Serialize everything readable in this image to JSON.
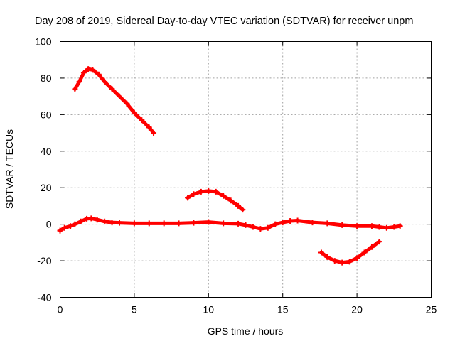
{
  "chart_data": {
    "type": "scatter",
    "title": "Day 208 of 2019, Sidereal Day-to-day VTEC variation (SDTVAR) for receiver unpm",
    "xlabel": "GPS time / hours",
    "ylabel": "SDTVAR / TECUs",
    "xlim": [
      0,
      25
    ],
    "ylim": [
      -40,
      100
    ],
    "xticks": [
      0,
      5,
      10,
      15,
      20,
      25
    ],
    "yticks": [
      -40,
      -20,
      0,
      20,
      40,
      60,
      80,
      100
    ],
    "xtick_labels": [
      "0",
      "5",
      "10",
      "15",
      "20",
      "25"
    ],
    "ytick_labels": [
      "-40",
      "-20",
      "0",
      "20",
      "40",
      "60",
      "80",
      "100"
    ],
    "grid": true,
    "series_color": "#ff0000",
    "series": [
      {
        "name": "arc-1",
        "points": [
          [
            1.0,
            74
          ],
          [
            1.3,
            78
          ],
          [
            1.6,
            83
          ],
          [
            1.9,
            85
          ],
          [
            2.2,
            84.5
          ],
          [
            2.6,
            82
          ],
          [
            3.0,
            78
          ],
          [
            3.5,
            74
          ],
          [
            4.0,
            70
          ],
          [
            4.5,
            66
          ],
          [
            5.0,
            61
          ],
          [
            5.5,
            57
          ],
          [
            6.0,
            53
          ],
          [
            6.3,
            50
          ]
        ]
      },
      {
        "name": "arc-2",
        "points": [
          [
            0.0,
            -3.5
          ],
          [
            0.3,
            -2
          ],
          [
            0.7,
            -1
          ],
          [
            1.0,
            0
          ],
          [
            1.4,
            1.5
          ],
          [
            1.8,
            3
          ],
          [
            2.1,
            3.2
          ],
          [
            2.5,
            2.5
          ],
          [
            3.0,
            1.5
          ],
          [
            3.5,
            1
          ],
          [
            4.0,
            0.8
          ],
          [
            5.0,
            0.5
          ],
          [
            6.0,
            0.5
          ],
          [
            7.0,
            0.5
          ],
          [
            8.0,
            0.5
          ],
          [
            9.0,
            0.8
          ],
          [
            10.0,
            1.2
          ],
          [
            11.0,
            0.5
          ],
          [
            12.0,
            0.3
          ],
          [
            12.5,
            -0.5
          ],
          [
            13.0,
            -1.5
          ],
          [
            13.5,
            -2.5
          ],
          [
            14.0,
            -2
          ],
          [
            14.5,
            0
          ],
          [
            15.0,
            1
          ],
          [
            15.5,
            1.8
          ],
          [
            16.0,
            2
          ],
          [
            17.0,
            1
          ],
          [
            18.0,
            0.5
          ],
          [
            19.0,
            -0.5
          ],
          [
            20.0,
            -1
          ],
          [
            21.0,
            -1
          ],
          [
            21.5,
            -1.5
          ],
          [
            22.0,
            -2
          ],
          [
            22.5,
            -1.5
          ],
          [
            22.9,
            -1
          ]
        ]
      },
      {
        "name": "arc-3",
        "points": [
          [
            8.6,
            14.5
          ],
          [
            9.0,
            16.5
          ],
          [
            9.5,
            17.8
          ],
          [
            10.0,
            18.2
          ],
          [
            10.5,
            17.8
          ],
          [
            11.0,
            15.5
          ],
          [
            11.5,
            13
          ],
          [
            12.0,
            10
          ],
          [
            12.3,
            8
          ]
        ]
      },
      {
        "name": "arc-4",
        "points": [
          [
            17.6,
            -15.5
          ],
          [
            18.0,
            -18
          ],
          [
            18.5,
            -20
          ],
          [
            19.0,
            -21
          ],
          [
            19.5,
            -20.5
          ],
          [
            20.0,
            -18.5
          ],
          [
            20.5,
            -15.5
          ],
          [
            21.0,
            -12.5
          ],
          [
            21.5,
            -9.5
          ]
        ]
      }
    ]
  }
}
